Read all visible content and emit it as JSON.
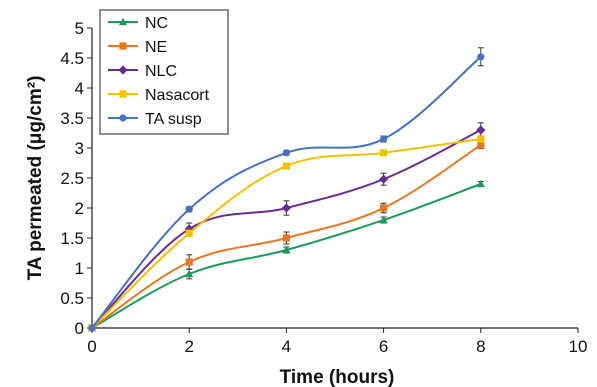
{
  "chart_data": {
    "type": "line",
    "title": "",
    "xlabel": "Time (hours)",
    "ylabel": "TA permeated (μg/cm²)",
    "xlim": [
      0,
      10
    ],
    "ylim": [
      0,
      5
    ],
    "xticks": [
      0,
      2,
      4,
      6,
      8,
      10
    ],
    "yticks": [
      0,
      0.5,
      1,
      1.5,
      2,
      2.5,
      3,
      3.5,
      4,
      4.5,
      5
    ],
    "ytick_labels": [
      "0",
      "0.5",
      "1",
      "1.5",
      "2",
      "2.5",
      "3",
      "3.5",
      "4",
      "4.5",
      "5"
    ],
    "xtick_labels": [
      "0",
      "2",
      "4",
      "6",
      "8",
      "10"
    ],
    "grid": false,
    "legend_position": "top-left",
    "x": [
      0,
      2,
      4,
      6,
      8
    ],
    "series": [
      {
        "name": "NC",
        "color": "#1a9b5c",
        "marker": "triangle",
        "values": [
          0,
          0.9,
          1.3,
          1.8,
          2.4
        ],
        "error": [
          0,
          0.08,
          0.05,
          0.05,
          0.04
        ]
      },
      {
        "name": "NE",
        "color": "#e87722",
        "marker": "square",
        "values": [
          0,
          1.1,
          1.5,
          2.0,
          3.05
        ],
        "error": [
          0,
          0.12,
          0.1,
          0.08,
          0.06
        ]
      },
      {
        "name": "NLC",
        "color": "#6a2c91",
        "marker": "diamond",
        "values": [
          0,
          1.65,
          2.0,
          2.48,
          3.3
        ],
        "error": [
          0,
          0.1,
          0.12,
          0.1,
          0.12
        ]
      },
      {
        "name": "Nasacort",
        "color": "#f5c000",
        "marker": "square",
        "values": [
          0,
          1.58,
          2.7,
          2.92,
          3.15
        ],
        "error": [
          0,
          0.05,
          0.04,
          0.03,
          0.04
        ]
      },
      {
        "name": "TA susp",
        "color": "#4472c4",
        "marker": "circle",
        "values": [
          0,
          1.98,
          2.92,
          3.15,
          4.52
        ],
        "error": [
          0,
          0.04,
          0.04,
          0.05,
          0.15
        ]
      }
    ]
  }
}
